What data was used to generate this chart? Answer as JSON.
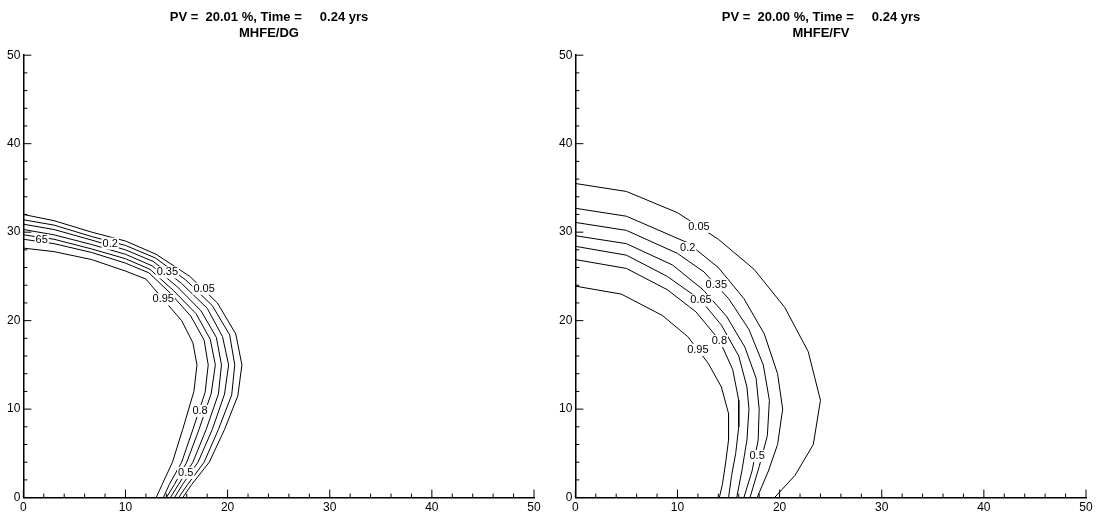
{
  "chart_data": [
    {
      "type": "line",
      "title": "PV =  20.01 %, Time =     0.24 yrs",
      "subtitle": "MHFE/DG",
      "marker": "none",
      "xlim": [
        0,
        50
      ],
      "ylim": [
        0,
        50
      ],
      "xticks": [
        0,
        {
          "value": 2,
          "label": null
        },
        {
          "value": 4,
          "label": null
        },
        {
          "value": 6,
          "label": null
        },
        {
          "value": 8,
          "label": null
        },
        10,
        {
          "value": 12,
          "label": null
        },
        {
          "value": 14,
          "label": null
        },
        {
          "value": 16,
          "label": null
        },
        {
          "value": 18,
          "label": null
        },
        20,
        {
          "value": 22,
          "label": null
        },
        {
          "value": 24,
          "label": null
        },
        {
          "value": 26,
          "label": null
        },
        {
          "value": 28,
          "label": null
        },
        30,
        {
          "value": 32,
          "label": null
        },
        {
          "value": 34,
          "label": null
        },
        {
          "value": 36,
          "label": null
        },
        {
          "value": 38,
          "label": null
        },
        40,
        {
          "value": 42,
          "label": null
        },
        {
          "value": 44,
          "label": null
        },
        {
          "value": 46,
          "label": null
        },
        {
          "value": 48,
          "label": null
        },
        50
      ],
      "yticks": [
        0,
        {
          "value": 2,
          "label": null
        },
        {
          "value": 4,
          "label": null
        },
        {
          "value": 6,
          "label": null
        },
        {
          "value": 8,
          "label": null
        },
        10,
        {
          "value": 12,
          "label": null
        },
        {
          "value": 14,
          "label": null
        },
        {
          "value": 16,
          "label": null
        },
        {
          "value": 18,
          "label": null
        },
        20,
        {
          "value": 22,
          "label": null
        },
        {
          "value": 24,
          "label": null
        },
        {
          "value": 26,
          "label": null
        },
        {
          "value": 28,
          "label": null
        },
        30,
        {
          "value": 32,
          "label": null
        },
        {
          "value": 34,
          "label": null
        },
        {
          "value": 36,
          "label": null
        },
        {
          "value": 38,
          "label": null
        },
        40,
        {
          "value": 42,
          "label": null
        },
        {
          "value": 44,
          "label": null
        },
        {
          "value": 46,
          "label": null
        },
        {
          "value": 48,
          "label": null
        },
        50
      ],
      "series": [
        {
          "color": "#000000",
          "x": [
            0,
            3,
            6.7,
            10,
            13,
            16.3,
            19,
            20.8,
            21.4,
            21,
            19.7,
            18.2,
            16.5,
            15.6
          ],
          "values": [
            32,
            31.3,
            30,
            29,
            27.5,
            25,
            22,
            18.5,
            15,
            11.5,
            7.7,
            4,
            1.5,
            0
          ]
        },
        {
          "color": "#000000",
          "x": [
            0,
            3,
            6.7,
            10,
            12.9,
            15.9,
            18.5,
            20.2,
            20.7,
            20.4,
            19.1,
            17.7,
            16.1,
            15.2
          ],
          "values": [
            31.4,
            30.8,
            29.5,
            28.5,
            27.1,
            24.6,
            21.7,
            18.4,
            15,
            11.6,
            7.7,
            4,
            1.5,
            0
          ]
        },
        {
          "color": "#000000",
          "x": [
            0,
            3,
            6.7,
            10,
            12.7,
            15.5,
            18,
            19.5,
            20.1,
            19.7,
            18.5,
            17.1,
            15.6,
            14.8
          ],
          "values": [
            30.9,
            30.3,
            29.1,
            28,
            26.7,
            24.2,
            21.4,
            18.2,
            15,
            11.7,
            7.7,
            4,
            1.5,
            0
          ]
        },
        {
          "color": "#000000",
          "x": [
            0,
            3,
            6.7,
            10,
            12.6,
            15.1,
            17.4,
            18.9,
            19.4,
            19.1,
            17.9,
            16.6,
            15.2,
            14.4
          ],
          "values": [
            30.3,
            29.7,
            28.6,
            27.5,
            26.2,
            23.8,
            21.1,
            18.1,
            15,
            11.7,
            7.7,
            4,
            1.5,
            0
          ]
        },
        {
          "color": "#000000",
          "x": [
            0,
            3,
            6.7,
            10,
            12.4,
            14.7,
            16.9,
            18.3,
            18.8,
            18.4,
            17.2,
            16,
            14.8,
            14
          ],
          "values": [
            29.7,
            29.2,
            28.1,
            27,
            25.8,
            23.4,
            20.8,
            17.9,
            15,
            11.8,
            7.7,
            4,
            1.5,
            0
          ]
        },
        {
          "color": "#000000",
          "x": [
            0,
            3,
            6.7,
            10,
            12.3,
            14.4,
            16.4,
            17.7,
            18.1,
            17.8,
            16.6,
            15.5,
            14.3,
            13.7
          ],
          "values": [
            29.2,
            28.7,
            27.7,
            26.5,
            25.4,
            23.1,
            20.5,
            17.8,
            15,
            11.9,
            7.7,
            4,
            1.5,
            0
          ]
        },
        {
          "color": "#000000",
          "x": [
            0,
            3,
            6.7,
            10,
            12,
            13.7,
            15.5,
            16.6,
            17,
            16.7,
            15.6,
            14.6,
            13.6,
            13
          ],
          "values": [
            28.2,
            27.8,
            26.9,
            25.6,
            24.7,
            22.4,
            20,
            17.5,
            15,
            12,
            7.7,
            4,
            1.5,
            0
          ]
        }
      ],
      "annotations": [
        {
          "text": "65",
          "x": 1.8,
          "y": 29.1
        },
        {
          "text": "0.2",
          "x": 8.5,
          "y": 28.7
        },
        {
          "text": "0.05",
          "x": 17.7,
          "y": 23.6
        },
        {
          "text": "0.35",
          "x": 14.1,
          "y": 25.45
        },
        {
          "text": "0.95",
          "x": 13.7,
          "y": 22.4
        },
        {
          "text": "0.8",
          "x": 17.3,
          "y": 9.8
        },
        {
          "text": "0.5",
          "x": 15.9,
          "y": 2.8
        }
      ]
    },
    {
      "type": "line",
      "title": "PV =  20.00 %, Time =     0.24 yrs",
      "subtitle": "MHFE/FV",
      "marker": "none",
      "xlim": [
        0,
        50
      ],
      "ylim": [
        0,
        50
      ],
      "xticks": [
        0,
        {
          "value": 2,
          "label": null
        },
        {
          "value": 4,
          "label": null
        },
        {
          "value": 6,
          "label": null
        },
        {
          "value": 8,
          "label": null
        },
        10,
        {
          "value": 12,
          "label": null
        },
        {
          "value": 14,
          "label": null
        },
        {
          "value": 16,
          "label": null
        },
        {
          "value": 18,
          "label": null
        },
        20,
        {
          "value": 22,
          "label": null
        },
        {
          "value": 24,
          "label": null
        },
        {
          "value": 26,
          "label": null
        },
        {
          "value": 28,
          "label": null
        },
        30,
        {
          "value": 32,
          "label": null
        },
        {
          "value": 34,
          "label": null
        },
        {
          "value": 36,
          "label": null
        },
        {
          "value": 38,
          "label": null
        },
        40,
        {
          "value": 42,
          "label": null
        },
        {
          "value": 44,
          "label": null
        },
        {
          "value": 46,
          "label": null
        },
        {
          "value": 48,
          "label": null
        },
        50
      ],
      "yticks": [
        0,
        {
          "value": 2,
          "label": null
        },
        {
          "value": 4,
          "label": null
        },
        {
          "value": 6,
          "label": null
        },
        {
          "value": 8,
          "label": null
        },
        10,
        {
          "value": 12,
          "label": null
        },
        {
          "value": 14,
          "label": null
        },
        {
          "value": 16,
          "label": null
        },
        {
          "value": 18,
          "label": null
        },
        20,
        {
          "value": 22,
          "label": null
        },
        {
          "value": 24,
          "label": null
        },
        {
          "value": 26,
          "label": null
        },
        {
          "value": 28,
          "label": null
        },
        30,
        {
          "value": 32,
          "label": null
        },
        {
          "value": 34,
          "label": null
        },
        {
          "value": 36,
          "label": null
        },
        {
          "value": 38,
          "label": null
        },
        40,
        {
          "value": 42,
          "label": null
        },
        {
          "value": 44,
          "label": null
        },
        {
          "value": 46,
          "label": null
        },
        {
          "value": 48,
          "label": null
        },
        50
      ],
      "series": [
        {
          "color": "#000000",
          "x": [
            0,
            5,
            10,
            14,
            17.5,
            20.5,
            22.8,
            24,
            23.3,
            21.5,
            19.5
          ],
          "values": [
            35.5,
            34.6,
            32.2,
            29.2,
            25.8,
            21.5,
            16.5,
            11,
            6,
            2.5,
            0
          ]
        },
        {
          "color": "#000000",
          "x": [
            0,
            5,
            11,
            14,
            16.5,
            18.5,
            19.8,
            20.3,
            19.8,
            18.9,
            17.8
          ],
          "values": [
            32.7,
            31.8,
            28.8,
            26,
            22.5,
            18.5,
            14,
            10,
            6,
            3,
            0
          ]
        },
        {
          "color": "#000000",
          "x": [
            0,
            5,
            10,
            12.6,
            15,
            17,
            18.4,
            19,
            18.8,
            18,
            17.1
          ],
          "values": [
            31.1,
            30.2,
            27.6,
            25.5,
            22.5,
            19,
            15,
            11,
            7,
            3.5,
            0
          ]
        },
        {
          "color": "#000000",
          "x": [
            0,
            5,
            9.5,
            12.5,
            14.8,
            16.6,
            17.7,
            18,
            17.9,
            17.3,
            16.5
          ],
          "values": [
            29.6,
            28.7,
            26.3,
            23.5,
            20.5,
            17,
            13.5,
            10,
            6.5,
            3,
            0
          ]
        },
        {
          "color": "#000000",
          "x": [
            0,
            5,
            9,
            12.3,
            14.3,
            16,
            16.8,
            17,
            16.8,
            16.3,
            15.8
          ],
          "values": [
            28.4,
            27.4,
            25,
            22.3,
            19.5,
            16,
            12.5,
            10,
            6.5,
            3,
            0
          ]
        },
        {
          "color": "#000000",
          "x": [
            0,
            5,
            9,
            11.8,
            14.1,
            15.4,
            16,
            16,
            15.7,
            15.3,
            15
          ],
          "values": [
            26.9,
            25.9,
            23.5,
            21,
            17.8,
            14.5,
            11,
            8,
            5,
            2.5,
            0
          ]
        },
        {
          "color": "#000000",
          "x": [
            0,
            4.5,
            8.5,
            11,
            13,
            14.3,
            15,
            15,
            14.7,
            14.4,
            14.1
          ],
          "values": [
            23.9,
            23,
            20.6,
            18.2,
            15.2,
            12.5,
            9.5,
            6.5,
            3.8,
            1.5,
            0
          ]
        }
      ],
      "annotations": [
        {
          "text": "0.05",
          "x": 12.1,
          "y": 30.6
        },
        {
          "text": "0.2",
          "x": 11,
          "y": 28.2
        },
        {
          "text": "0.35",
          "x": 13.8,
          "y": 24
        },
        {
          "text": "0.65",
          "x": 12.3,
          "y": 22.3
        },
        {
          "text": "0.8",
          "x": 14.1,
          "y": 17.7
        },
        {
          "text": "0.95",
          "x": 12,
          "y": 16.7
        },
        {
          "text": "0.5",
          "x": 17.8,
          "y": 4.7
        }
      ]
    }
  ]
}
